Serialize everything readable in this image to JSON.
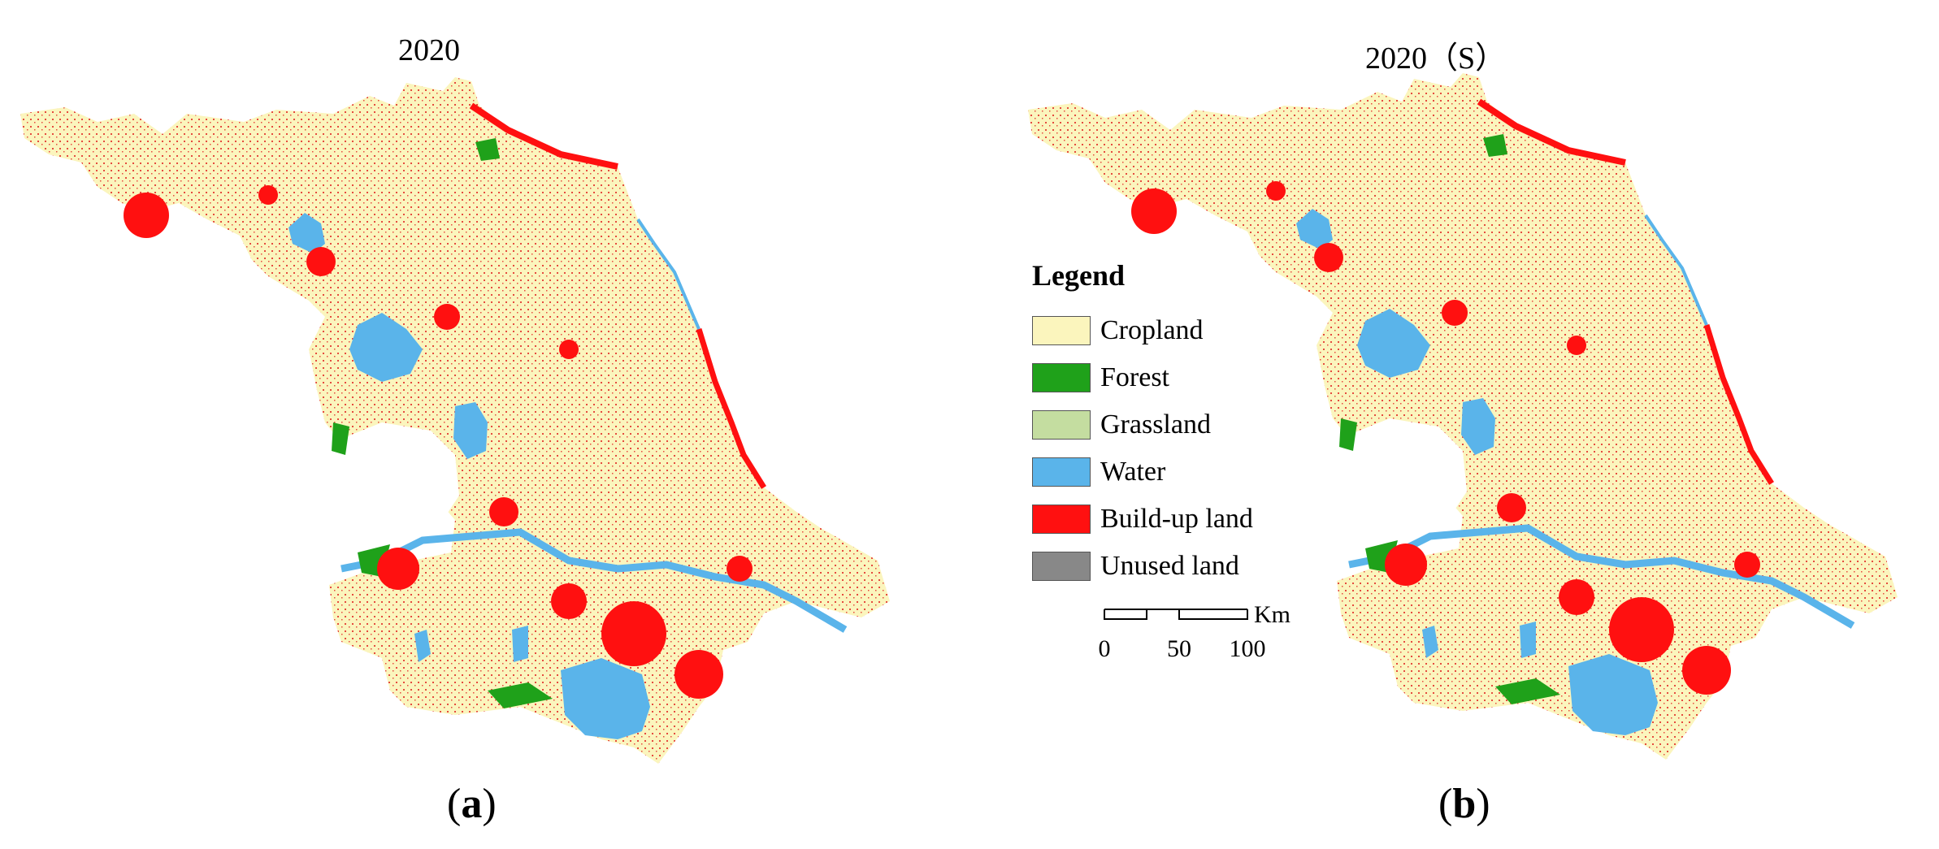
{
  "map_a": {
    "title": "2020",
    "panel_letter": "a"
  },
  "map_b": {
    "title": "2020（S）",
    "panel_letter": "b"
  },
  "legend": {
    "title": "Legend",
    "items": [
      {
        "label": "Cropland",
        "color": "#FBF5BD"
      },
      {
        "label": "Forest",
        "color": "#1FA11A"
      },
      {
        "label": "Grassland",
        "color": "#C4DDA0"
      },
      {
        "label": "Water",
        "color": "#5AB4EA"
      },
      {
        "label": "Build-up land",
        "color": "#FF1010"
      },
      {
        "label": "Unused land",
        "color": "#888888"
      }
    ]
  },
  "scale_bar": {
    "unit": "Km",
    "ticks": [
      "0",
      "50",
      "100"
    ]
  }
}
